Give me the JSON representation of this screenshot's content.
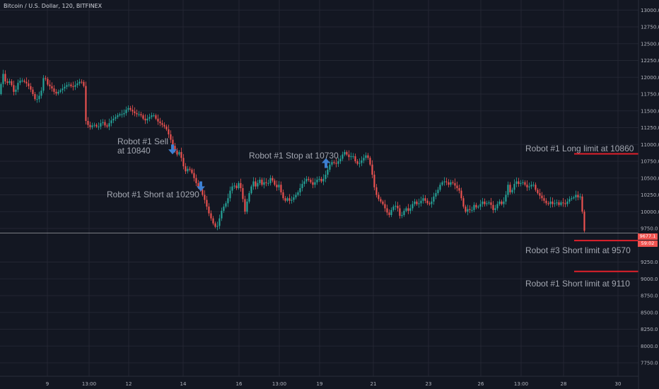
{
  "colors": {
    "background": "#131722",
    "grid": "#232632",
    "up": "#26a69a",
    "down": "#ef5350",
    "limit_line": "#e0202b",
    "arrow": "#3d7fd1",
    "price_line": "#ffffff"
  },
  "chart_data": {
    "type": "candlestick",
    "title": "Bitcoin / U.S. Dollar, 120, BITFINEX",
    "ylim": [
      7550,
      13150
    ],
    "xlim": [
      0,
      900
    ],
    "y_ticks": [
      {
        "value": 13000,
        "label": "13000.0"
      },
      {
        "value": 12750,
        "label": "12750.0"
      },
      {
        "value": 12500,
        "label": "12500.0"
      },
      {
        "value": 12250,
        "label": "12250.0"
      },
      {
        "value": 12000,
        "label": "12000.0"
      },
      {
        "value": 11750,
        "label": "11750.0"
      },
      {
        "value": 11500,
        "label": "11500.0"
      },
      {
        "value": 11250,
        "label": "11250.0"
      },
      {
        "value": 11000,
        "label": "11000.0"
      },
      {
        "value": 10750,
        "label": "10750.0"
      },
      {
        "value": 10500,
        "label": "10500.0"
      },
      {
        "value": 10250,
        "label": "10250.0"
      },
      {
        "value": 10000,
        "label": "10000.0"
      },
      {
        "value": 9750,
        "label": "9750.0"
      },
      {
        "value": 9250,
        "label": "9250.0"
      },
      {
        "value": 9000,
        "label": "9000.0"
      },
      {
        "value": 8750,
        "label": "8750.0"
      },
      {
        "value": 8500,
        "label": "8500.0"
      },
      {
        "value": 8250,
        "label": "8250.0"
      },
      {
        "value": 8000,
        "label": "8000.0"
      },
      {
        "value": 7750,
        "label": "7750.0"
      }
    ],
    "x_ticks": [
      {
        "x": 67,
        "label": "9"
      },
      {
        "x": 126,
        "label": "13:00"
      },
      {
        "x": 182,
        "label": "12"
      },
      {
        "x": 259,
        "label": "14"
      },
      {
        "x": 338,
        "label": "16"
      },
      {
        "x": 395,
        "label": "13:00"
      },
      {
        "x": 452,
        "label": "19"
      },
      {
        "x": 528,
        "label": "21"
      },
      {
        "x": 606,
        "label": "23"
      },
      {
        "x": 680,
        "label": "26"
      },
      {
        "x": 737,
        "label": "13:00"
      },
      {
        "x": 797,
        "label": "28"
      },
      {
        "x": 874,
        "label": "30"
      }
    ],
    "path": [
      [
        0,
        11750
      ],
      [
        6,
        12050
      ],
      [
        10,
        11900
      ],
      [
        16,
        11950
      ],
      [
        22,
        11750
      ],
      [
        28,
        11950
      ],
      [
        34,
        11950
      ],
      [
        40,
        11900
      ],
      [
        46,
        11800
      ],
      [
        52,
        11650
      ],
      [
        56,
        11700
      ],
      [
        60,
        11800
      ],
      [
        64,
        12050
      ],
      [
        68,
        11900
      ],
      [
        74,
        11850
      ],
      [
        80,
        11750
      ],
      [
        86,
        11800
      ],
      [
        92,
        11850
      ],
      [
        98,
        11900
      ],
      [
        104,
        11850
      ],
      [
        110,
        11900
      ],
      [
        116,
        11950
      ],
      [
        121,
        11850
      ],
      [
        123,
        11350
      ],
      [
        128,
        11250
      ],
      [
        134,
        11300
      ],
      [
        140,
        11250
      ],
      [
        146,
        11350
      ],
      [
        152,
        11250
      ],
      [
        158,
        11350
      ],
      [
        164,
        11400
      ],
      [
        170,
        11450
      ],
      [
        176,
        11450
      ],
      [
        182,
        11550
      ],
      [
        188,
        11500
      ],
      [
        194,
        11450
      ],
      [
        200,
        11450
      ],
      [
        206,
        11350
      ],
      [
        212,
        11400
      ],
      [
        218,
        11450
      ],
      [
        224,
        11350
      ],
      [
        230,
        11300
      ],
      [
        236,
        11250
      ],
      [
        242,
        11100
      ],
      [
        247,
        10950
      ],
      [
        252,
        10850
      ],
      [
        256,
        10900
      ],
      [
        260,
        10700
      ],
      [
        264,
        10600
      ],
      [
        268,
        10650
      ],
      [
        272,
        10600
      ],
      [
        276,
        10500
      ],
      [
        280,
        10400
      ],
      [
        284,
        10350
      ],
      [
        288,
        10250
      ],
      [
        292,
        10150
      ],
      [
        296,
        10000
      ],
      [
        300,
        9900
      ],
      [
        304,
        9800
      ],
      [
        308,
        9750
      ],
      [
        312,
        9900
      ],
      [
        316,
        10050
      ],
      [
        320,
        10100
      ],
      [
        324,
        10200
      ],
      [
        328,
        10350
      ],
      [
        332,
        10400
      ],
      [
        336,
        10350
      ],
      [
        340,
        10450
      ],
      [
        344,
        10250
      ],
      [
        348,
        10000
      ],
      [
        352,
        10200
      ],
      [
        356,
        10350
      ],
      [
        360,
        10450
      ],
      [
        364,
        10350
      ],
      [
        368,
        10500
      ],
      [
        372,
        10400
      ],
      [
        376,
        10450
      ],
      [
        380,
        10400
      ],
      [
        384,
        10500
      ],
      [
        388,
        10450
      ],
      [
        392,
        10350
      ],
      [
        396,
        10400
      ],
      [
        400,
        10250
      ],
      [
        404,
        10150
      ],
      [
        408,
        10200
      ],
      [
        412,
        10150
      ],
      [
        416,
        10200
      ],
      [
        420,
        10250
      ],
      [
        424,
        10300
      ],
      [
        428,
        10400
      ],
      [
        432,
        10450
      ],
      [
        436,
        10500
      ],
      [
        440,
        10450
      ],
      [
        444,
        10400
      ],
      [
        448,
        10450
      ],
      [
        452,
        10500
      ],
      [
        456,
        10450
      ],
      [
        460,
        10500
      ],
      [
        464,
        10600
      ],
      [
        468,
        10700
      ],
      [
        472,
        10750
      ],
      [
        476,
        10700
      ],
      [
        480,
        10750
      ],
      [
        484,
        10800
      ],
      [
        488,
        10900
      ],
      [
        492,
        10850
      ],
      [
        496,
        10800
      ],
      [
        500,
        10850
      ],
      [
        504,
        10750
      ],
      [
        508,
        10700
      ],
      [
        512,
        10750
      ],
      [
        516,
        10800
      ],
      [
        520,
        10850
      ],
      [
        524,
        10750
      ],
      [
        528,
        10550
      ],
      [
        532,
        10300
      ],
      [
        536,
        10200
      ],
      [
        540,
        10150
      ],
      [
        544,
        10100
      ],
      [
        548,
        10000
      ],
      [
        552,
        9950
      ],
      [
        556,
        10050
      ],
      [
        560,
        10100
      ],
      [
        564,
        10050
      ],
      [
        568,
        9900
      ],
      [
        572,
        10000
      ],
      [
        576,
        10050
      ],
      [
        580,
        10000
      ],
      [
        584,
        10100
      ],
      [
        588,
        10150
      ],
      [
        592,
        10100
      ],
      [
        596,
        10150
      ],
      [
        600,
        10200
      ],
      [
        604,
        10150
      ],
      [
        608,
        10100
      ],
      [
        612,
        10150
      ],
      [
        616,
        10250
      ],
      [
        620,
        10300
      ],
      [
        624,
        10400
      ],
      [
        628,
        10450
      ],
      [
        632,
        10450
      ],
      [
        636,
        10400
      ],
      [
        640,
        10450
      ],
      [
        644,
        10400
      ],
      [
        648,
        10350
      ],
      [
        652,
        10300
      ],
      [
        656,
        10100
      ],
      [
        660,
        10000
      ],
      [
        664,
        10050
      ],
      [
        668,
        10000
      ],
      [
        672,
        10100
      ],
      [
        676,
        10050
      ],
      [
        680,
        10100
      ],
      [
        684,
        10150
      ],
      [
        688,
        10100
      ],
      [
        692,
        10150
      ],
      [
        696,
        10100
      ],
      [
        700,
        10000
      ],
      [
        704,
        10100
      ],
      [
        708,
        10150
      ],
      [
        712,
        10100
      ],
      [
        716,
        10200
      ],
      [
        720,
        10400
      ],
      [
        724,
        10250
      ],
      [
        728,
        10400
      ],
      [
        732,
        10450
      ],
      [
        736,
        10400
      ],
      [
        740,
        10450
      ],
      [
        744,
        10400
      ],
      [
        748,
        10350
      ],
      [
        752,
        10400
      ],
      [
        756,
        10400
      ],
      [
        760,
        10300
      ],
      [
        764,
        10250
      ],
      [
        768,
        10200
      ],
      [
        772,
        10150
      ],
      [
        776,
        10100
      ],
      [
        780,
        10150
      ],
      [
        784,
        10100
      ],
      [
        788,
        10150
      ],
      [
        792,
        10100
      ],
      [
        796,
        10150
      ],
      [
        800,
        10100
      ],
      [
        804,
        10150
      ],
      [
        808,
        10200
      ],
      [
        812,
        10200
      ],
      [
        816,
        10250
      ],
      [
        820,
        10200
      ],
      [
        824,
        10250
      ],
      [
        826,
        9750
      ],
      [
        830,
        9680
      ]
    ],
    "current_price": {
      "value": 9680,
      "label": "9677.1",
      "timer": "59:02"
    }
  },
  "annotations": [
    {
      "text": "Robot #1 Sell\nat 10840",
      "arrow": "down",
      "ax": 244,
      "ay": 11000
    },
    {
      "text": "Robot #1 Short at 10290",
      "arrow": "down",
      "ax": 284,
      "ay": 10450
    },
    {
      "text": "Robot #1 Stop at 10730",
      "arrow": "up",
      "ax": 461,
      "ay": 10650
    }
  ],
  "limits": [
    {
      "label": "Robot #1 Long limit at 10860",
      "value": 10860,
      "x1": 812,
      "x2": 903
    },
    {
      "label": "Robot #3 Short limit at 9570",
      "value": 9570,
      "x1": 812,
      "x2": 903
    },
    {
      "label": "Robot #1 Short limit at 9110",
      "value": 9110,
      "x1": 812,
      "x2": 903
    }
  ]
}
